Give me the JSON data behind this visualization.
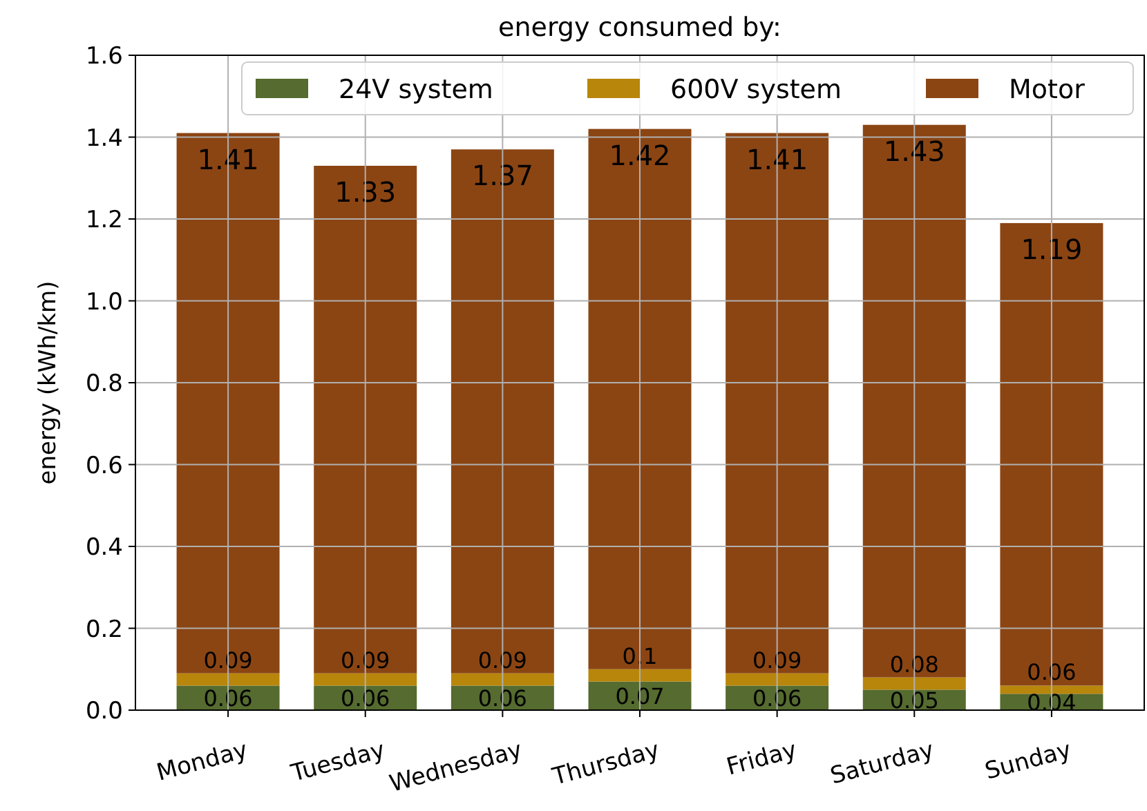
{
  "chart_data": {
    "type": "bar",
    "title": "energy consumed by:",
    "ylabel": "energy (kWh/km)",
    "categories": [
      "Monday",
      "Tuesday",
      "Wednesday",
      "Thursday",
      "Friday",
      "Saturday",
      "Sunday"
    ],
    "stacked": true,
    "ylim": [
      0,
      1.6
    ],
    "yticks": [
      {
        "value": 0,
        "label": "0.0"
      },
      0.2,
      0.4,
      0.6,
      0.8,
      {
        "value": 1,
        "label": "1.0"
      },
      1.2,
      1.4,
      1.6
    ],
    "grid": true,
    "legend": "top right",
    "series": [
      {
        "name": "24V system",
        "color": "#556b2f",
        "values": [
          0.06,
          0.06,
          0.06,
          0.07,
          0.06,
          0.05,
          0.04
        ],
        "value_labels": [
          "0.06",
          "0.06",
          "0.06",
          "0.07",
          "0.06",
          "0.05",
          "0.04"
        ]
      },
      {
        "name": "600V system",
        "color": "#b8860b",
        "values": [
          0.03,
          0.03,
          0.03,
          0.03,
          0.03,
          0.03,
          0.02
        ]
      },
      {
        "name": "Motor",
        "color": "#8b4513",
        "values": [
          1.32,
          1.24,
          1.28,
          1.32,
          1.32,
          1.35,
          1.13
        ]
      }
    ],
    "totals": [
      "1.41",
      "1.33",
      "1.37",
      "1.42",
      "1.41",
      "1.43",
      "1.19"
    ],
    "annotations": [
      {
        "text": "0.09",
        "x": "Monday",
        "y": 0.09
      },
      {
        "text": "0.09",
        "x": "Tuesday",
        "y": 0.09
      },
      {
        "text": "0.09",
        "x": "Wednesday",
        "y": 0.09
      },
      {
        "text": "0.1",
        "x": "Thursday",
        "y": 0.1
      },
      {
        "text": "0.09",
        "x": "Friday",
        "y": 0.09
      },
      {
        "text": "0.08",
        "x": "Saturday",
        "y": 0.08
      },
      {
        "text": "0.06",
        "x": "Sunday",
        "y": 0.06
      }
    ]
  }
}
